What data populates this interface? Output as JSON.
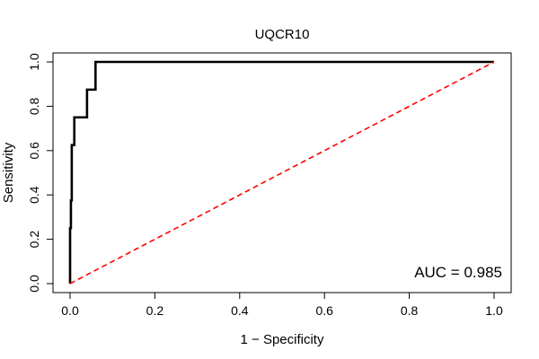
{
  "chart_data": {
    "type": "line",
    "title": "UQCR10",
    "xlabel": "1 − Specificity",
    "ylabel": "Sensitivity",
    "xlim": [
      0,
      1
    ],
    "ylim": [
      0,
      1
    ],
    "xticks": [
      "0.0",
      "0.2",
      "0.4",
      "0.6",
      "0.8",
      "1.0"
    ],
    "yticks": [
      "0.0",
      "0.2",
      "0.4",
      "0.6",
      "0.8",
      "1.0"
    ],
    "grid": false,
    "series": [
      {
        "kind": "roc-curve",
        "color": "#000000",
        "style": "solid",
        "x": [
          0,
          0,
          0.002,
          0.002,
          0.004,
          0.004,
          0.01,
          0.01,
          0.04,
          0.04,
          0.06,
          0.06,
          1.0
        ],
        "y": [
          0,
          0.25,
          0.25,
          0.375,
          0.375,
          0.625,
          0.625,
          0.75,
          0.75,
          0.875,
          0.875,
          1.0,
          1.0
        ]
      },
      {
        "kind": "reference-diagonal",
        "color": "#ff0000",
        "style": "dashed",
        "x": [
          0,
          1
        ],
        "y": [
          0,
          1
        ]
      }
    ],
    "annotation": {
      "text": "AUC = 0.985",
      "position": "bottom-right"
    }
  }
}
